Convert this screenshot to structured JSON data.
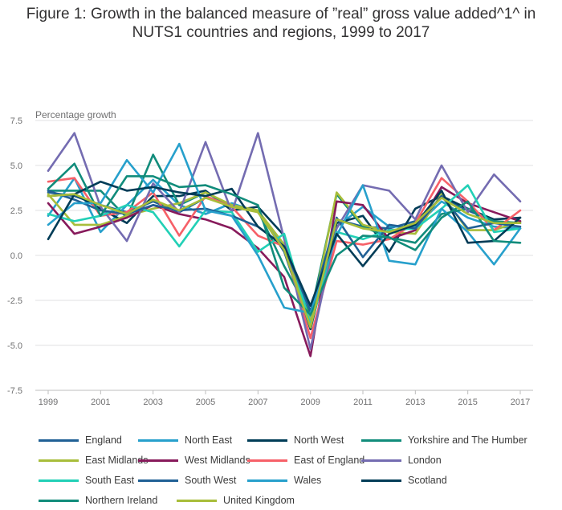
{
  "title_line1": "Figure 1: Growth in the balanced measure of ”real” gross value added^1^ in",
  "title_line2": "NUTS1 countries and regions, 1999 to 2017",
  "chart_data": {
    "type": "line",
    "title": "Figure 1: Growth in the balanced measure of ”real” gross value added^1^ in NUTS1 countries and regions, 1999 to 2017",
    "xlabel": "",
    "ylabel": "Percentage growth",
    "x": [
      1999,
      2000,
      2001,
      2002,
      2003,
      2004,
      2005,
      2006,
      2007,
      2008,
      2009,
      2010,
      2011,
      2012,
      2013,
      2014,
      2015,
      2016,
      2017
    ],
    "x_ticks": [
      "1999",
      "2001",
      "2003",
      "2005",
      "2007",
      "2009",
      "2011",
      "2013",
      "2015",
      "2017"
    ],
    "y_ticks": [
      "7.5",
      "5.0",
      "2.5",
      "0.0",
      "-2.5",
      "-5.0",
      "-7.5"
    ],
    "ylim": [
      -7.5,
      7.5
    ],
    "grid": "horizontal",
    "legend_position": "bottom",
    "series": [
      {
        "name": "England",
        "color": "#206095",
        "values": [
          3.5,
          3.3,
          2.8,
          2.4,
          3.0,
          2.4,
          3.2,
          2.8,
          2.5,
          0.2,
          -4.1,
          2.0,
          1.6,
          1.5,
          1.9,
          3.2,
          2.5,
          1.9,
          1.8
        ]
      },
      {
        "name": "North East",
        "color": "#27a0cc",
        "values": [
          2.2,
          4.3,
          1.3,
          2.8,
          4.2,
          2.8,
          2.3,
          2.9,
          2.4,
          0.5,
          -3.4,
          1.6,
          2.7,
          1.6,
          1.6,
          3.0,
          2.1,
          1.6,
          1.5
        ]
      },
      {
        "name": "North West",
        "color": "#003c57",
        "values": [
          3.3,
          3.4,
          2.6,
          1.8,
          3.3,
          3.3,
          3.6,
          2.5,
          2.7,
          1.1,
          -4.1,
          1.8,
          2.2,
          0.2,
          2.6,
          3.3,
          2.6,
          2.0,
          2.1
        ]
      },
      {
        "name": "Yorkshire and The Humber",
        "color": "#118c7b",
        "values": [
          3.6,
          3.6,
          3.6,
          2.1,
          5.6,
          2.8,
          3.5,
          2.7,
          2.5,
          -0.6,
          -3.3,
          3.4,
          1.6,
          1.0,
          0.7,
          2.3,
          2.6,
          1.9,
          1.8
        ]
      },
      {
        "name": "East Midlands",
        "color": "#a8bd3a",
        "values": [
          3.4,
          1.7,
          1.7,
          2.2,
          2.6,
          2.9,
          3.5,
          2.8,
          2.5,
          0.6,
          -3.7,
          3.5,
          1.7,
          1.3,
          1.2,
          3.4,
          1.4,
          1.4,
          1.9
        ]
      },
      {
        "name": "West Midlands",
        "color": "#871a5b",
        "values": [
          2.9,
          1.2,
          1.6,
          2.1,
          2.8,
          2.3,
          2.0,
          1.5,
          0.4,
          -1.2,
          -5.6,
          3.0,
          2.8,
          0.9,
          1.4,
          3.8,
          2.9,
          2.4,
          1.9
        ]
      },
      {
        "name": "East of England",
        "color": "#f66068",
        "values": [
          4.1,
          4.3,
          2.2,
          2.4,
          3.5,
          1.1,
          3.3,
          2.7,
          1.1,
          0.5,
          -4.6,
          0.8,
          0.6,
          0.9,
          1.8,
          4.3,
          3.0,
          1.4,
          2.5
        ]
      },
      {
        "name": "London",
        "color": "#746cb1",
        "values": [
          4.7,
          6.8,
          2.7,
          0.8,
          4.0,
          2.4,
          6.3,
          2.4,
          6.8,
          0.9,
          -5.2,
          1.5,
          3.9,
          3.6,
          2.0,
          5.0,
          2.4,
          4.5,
          3.0
        ]
      },
      {
        "name": "South East",
        "color": "#22d0b6",
        "values": [
          2.3,
          1.9,
          2.2,
          2.8,
          2.4,
          0.5,
          2.5,
          2.4,
          0.2,
          1.2,
          -3.9,
          1.3,
          0.9,
          1.4,
          1.5,
          2.6,
          3.9,
          1.3,
          1.5
        ]
      },
      {
        "name": "South West",
        "color": "#206095",
        "values": [
          3.6,
          3.1,
          2.5,
          2.3,
          2.8,
          2.5,
          2.6,
          2.2,
          1.6,
          0.5,
          -3.1,
          2.1,
          -0.1,
          1.7,
          1.5,
          3.3,
          1.5,
          1.8,
          1.6
        ]
      },
      {
        "name": "Wales",
        "color": "#27a0cc",
        "values": [
          1.7,
          2.9,
          2.9,
          5.3,
          3.5,
          6.2,
          2.5,
          2.2,
          0.0,
          -2.9,
          -3.2,
          1.1,
          3.9,
          -0.3,
          -0.5,
          2.6,
          1.3,
          -0.5,
          1.5
        ]
      },
      {
        "name": "Scotland",
        "color": "#003c57",
        "values": [
          0.9,
          3.4,
          4.1,
          3.6,
          3.8,
          3.5,
          3.3,
          3.7,
          1.6,
          0.5,
          -2.8,
          1.2,
          -0.6,
          1.2,
          1.7,
          3.6,
          0.7,
          0.8,
          2.1
        ]
      },
      {
        "name": "Northern Ireland",
        "color": "#118c7b",
        "values": [
          3.7,
          5.1,
          2.2,
          4.4,
          4.4,
          3.8,
          3.9,
          3.4,
          2.8,
          -1.8,
          -3.3,
          0.0,
          1.1,
          1.0,
          0.3,
          2.1,
          3.0,
          0.8,
          0.7
        ]
      },
      {
        "name": "United Kingdom",
        "color": "#a8bd3a",
        "values": [
          3.3,
          3.4,
          2.8,
          2.3,
          3.1,
          2.5,
          3.2,
          2.7,
          2.4,
          0.3,
          -4.0,
          2.0,
          1.5,
          1.3,
          1.8,
          3.2,
          2.3,
          1.8,
          1.8
        ]
      }
    ]
  }
}
